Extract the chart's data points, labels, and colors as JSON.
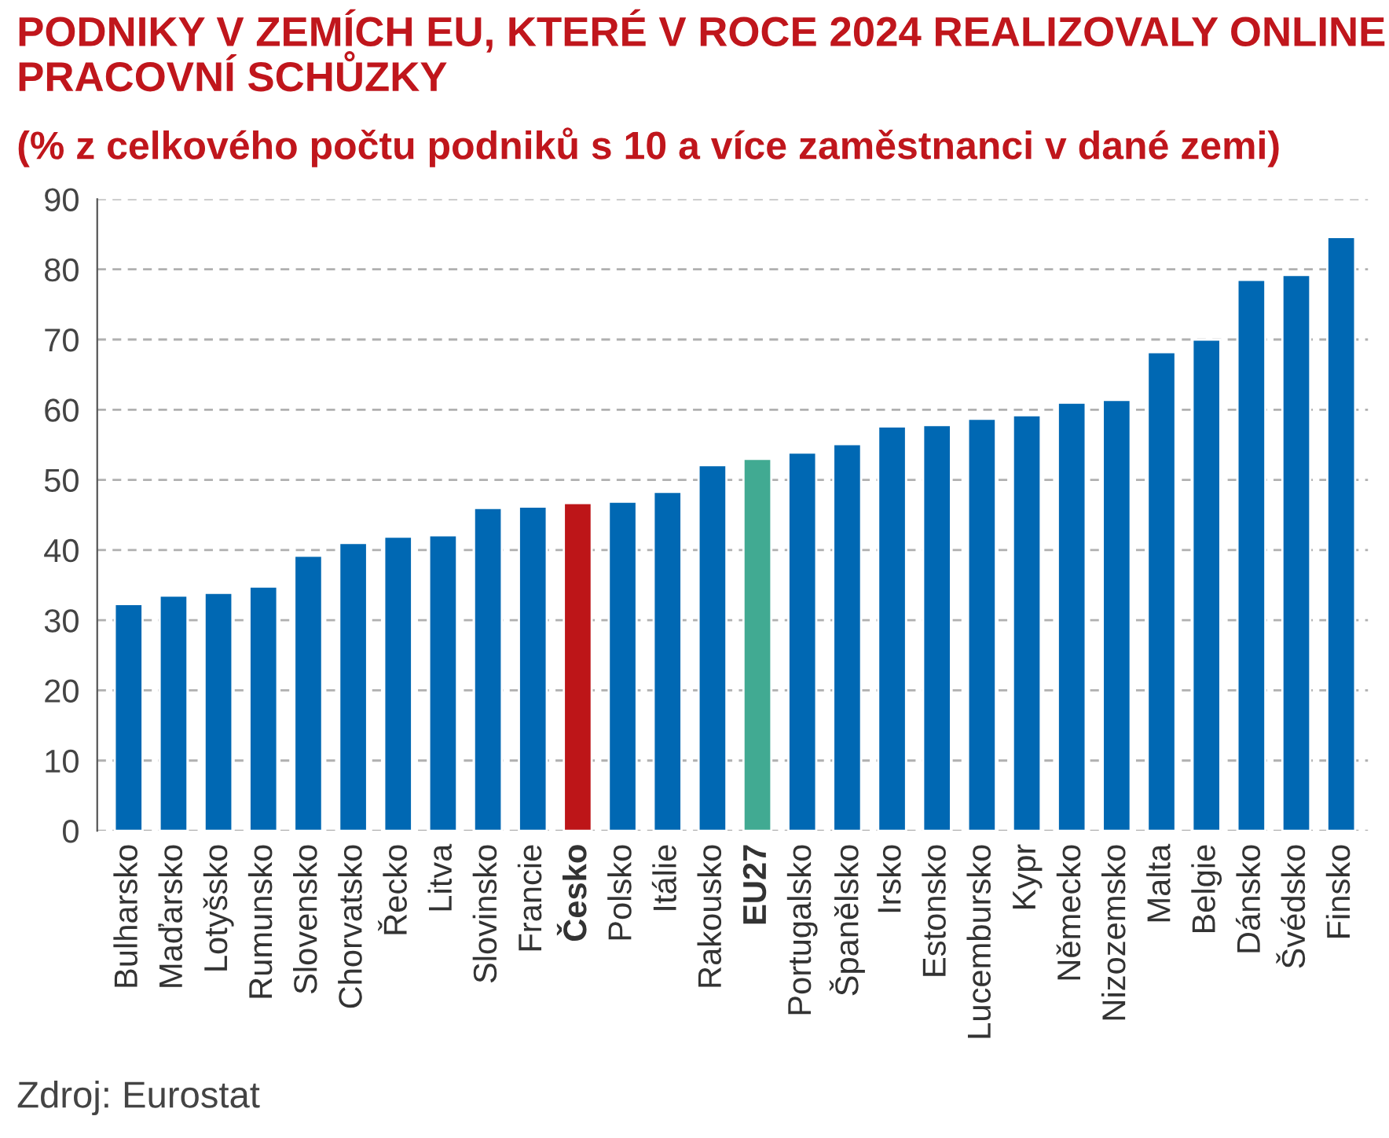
{
  "chart_data": {
    "type": "bar",
    "title": "PODNIKY V ZEMÍCH EU, KTERÉ V ROCE 2024 REALIZOVALY ONLINE\nPRACOVNÍ SCHŮZKY",
    "subtitle": "(% z celkového počtu podniků s 10 a více zaměstnanci v dané zemi)",
    "categories": [
      "Bulharsko",
      "Maďarsko",
      "Lotyšsko",
      "Rumunsko",
      "Slovensko",
      "Chorvatsko",
      "Řecko",
      "Litva",
      "Slovinsko",
      "Francie",
      "Česko",
      "Polsko",
      "Itálie",
      "Rakousko",
      "EU27",
      "Portugalsko",
      "Španělsko",
      "Irsko",
      "Estonsko",
      "Lucembursko",
      "Kypr",
      "Německo",
      "Nizozemsko",
      "Malta",
      "Belgie",
      "Dánsko",
      "Švédsko",
      "Finsko"
    ],
    "values": [
      32.3,
      33.5,
      33.9,
      34.8,
      39.2,
      41.0,
      41.9,
      42.1,
      46.0,
      46.2,
      46.7,
      46.9,
      48.3,
      52.1,
      53.0,
      53.9,
      55.1,
      57.6,
      57.8,
      58.7,
      59.2,
      61.0,
      61.4,
      68.2,
      70.0,
      78.5,
      79.2,
      84.6
    ],
    "colors": [
      "#0068b3",
      "#0068b3",
      "#0068b3",
      "#0068b3",
      "#0068b3",
      "#0068b3",
      "#0068b3",
      "#0068b3",
      "#0068b3",
      "#0068b3",
      "#bd1518",
      "#0068b3",
      "#0068b3",
      "#0068b3",
      "#41aa92",
      "#0068b3",
      "#0068b3",
      "#0068b3",
      "#0068b3",
      "#0068b3",
      "#0068b3",
      "#0068b3",
      "#0068b3",
      "#0068b3",
      "#0068b3",
      "#0068b3",
      "#0068b3",
      "#0068b3"
    ],
    "ylim": [
      0,
      90
    ],
    "yticks": [
      0,
      10,
      20,
      30,
      40,
      50,
      60,
      70,
      80,
      90
    ],
    "grid": "y",
    "annotations": [
      "Zdroj: Eurostat"
    ]
  }
}
